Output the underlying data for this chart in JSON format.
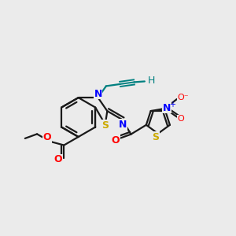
{
  "bg_color": "#ebebeb",
  "bond_color": "#1a1a1a",
  "bond_width": 1.6,
  "atom_colors": {
    "N": "#0000ff",
    "S": "#ccaa00",
    "O": "#ff0000",
    "alkyne": "#008080",
    "NO2_N": "#0000ff",
    "NO2_O": "#ff0000"
  },
  "xlim": [
    -3.0,
    3.2
  ],
  "ylim": [
    -2.2,
    2.0
  ]
}
